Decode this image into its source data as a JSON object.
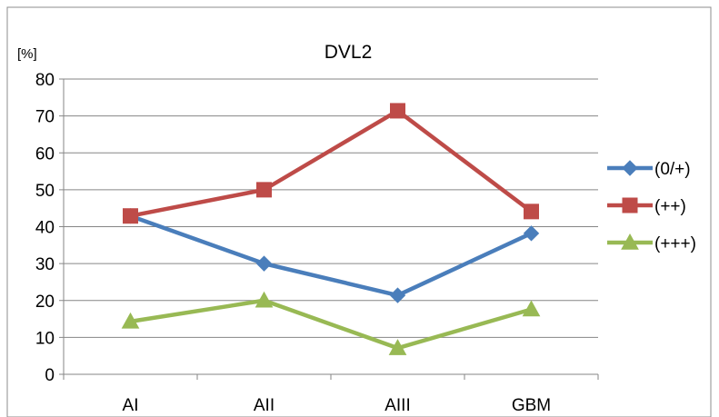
{
  "chart_data": {
    "type": "line",
    "title": "DVL2",
    "ylabel": "[%]",
    "xlabel": "",
    "categories": [
      "AI",
      "AII",
      "AIII",
      "GBM"
    ],
    "ylim": [
      0,
      80
    ],
    "yticks": [
      0,
      10,
      20,
      30,
      40,
      50,
      60,
      70,
      80
    ],
    "grid": true,
    "legend_position": "right",
    "series": [
      {
        "name": "(0/+)",
        "values": [
          42.9,
          30.0,
          21.4,
          38.2
        ],
        "color": "#4a7ebb",
        "marker": "diamond"
      },
      {
        "name": "(++)",
        "values": [
          42.9,
          50.0,
          71.4,
          44.1
        ],
        "color": "#be4b48",
        "marker": "square"
      },
      {
        "name": "(+++)",
        "values": [
          14.3,
          20.0,
          7.1,
          17.6
        ],
        "color": "#98b954",
        "marker": "triangle"
      }
    ]
  }
}
